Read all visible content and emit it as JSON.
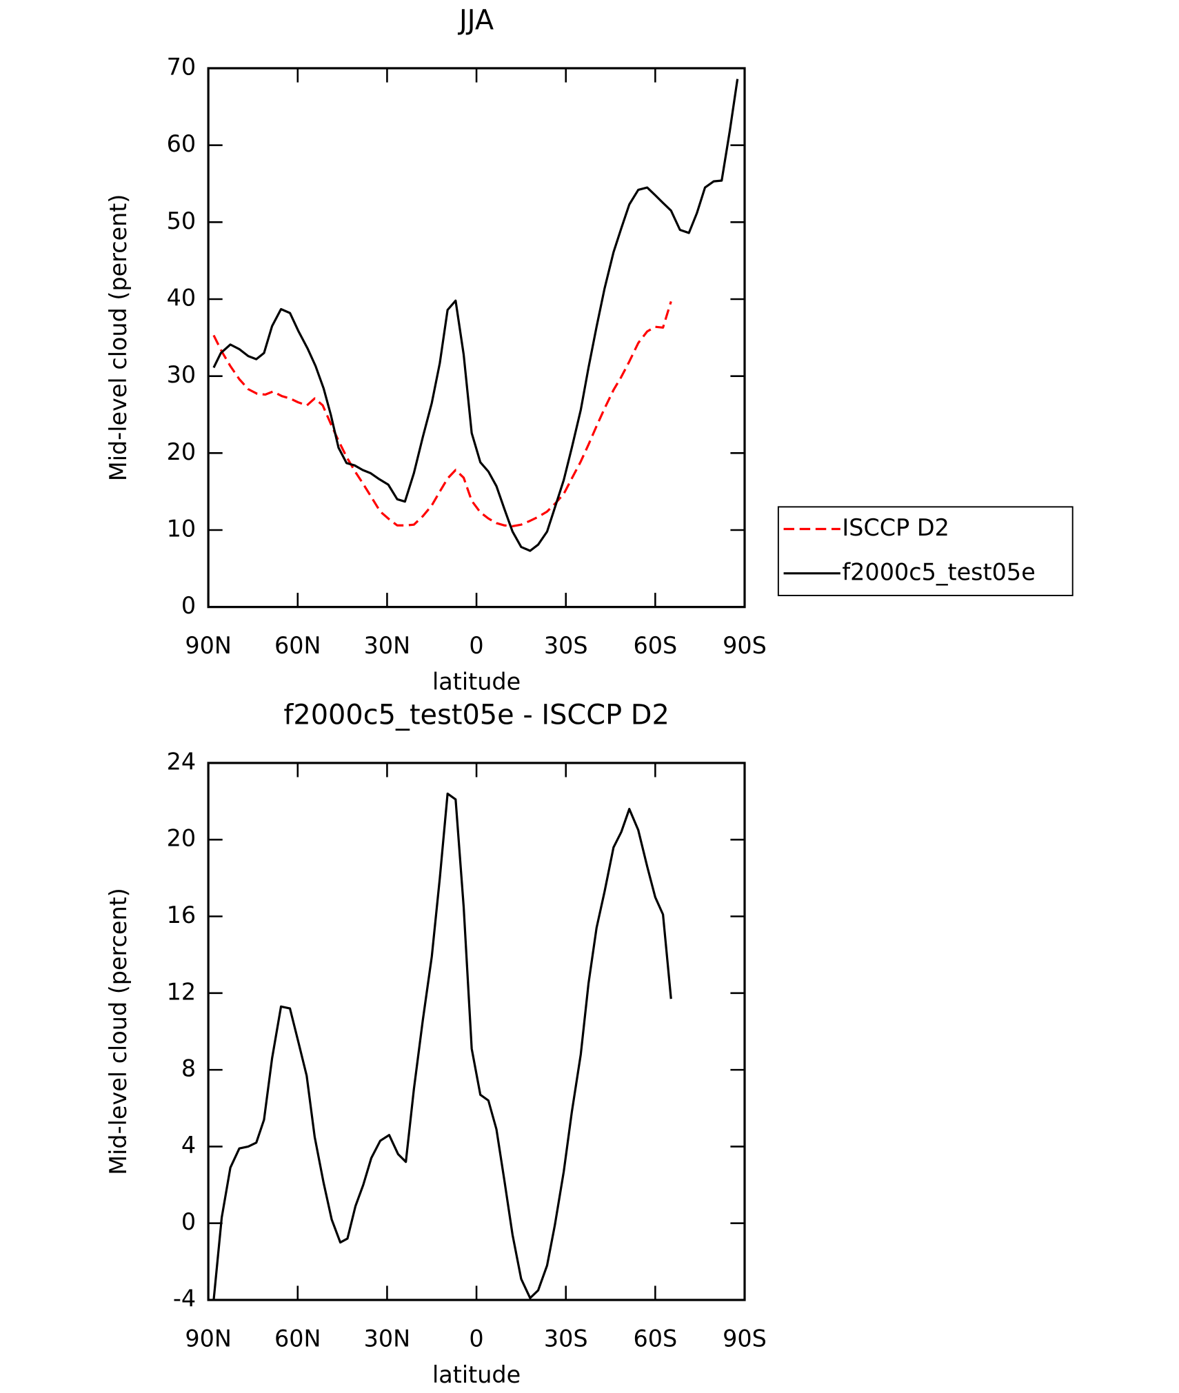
{
  "chart_data": [
    {
      "type": "line",
      "title": "JJA",
      "xlabel": "latitude",
      "ylabel": "Mid-level cloud (percent)",
      "xlim": [
        90,
        -90
      ],
      "xticks": [
        {
          "value": 90,
          "label": "90N"
        },
        {
          "value": 60,
          "label": "60N"
        },
        {
          "value": 30,
          "label": "30N"
        },
        0,
        {
          "value": -30,
          "label": "30S"
        },
        {
          "value": -60,
          "label": "60S"
        },
        {
          "value": -90,
          "label": "90S"
        }
      ],
      "ylim": [
        0,
        70
      ],
      "yticks": [
        0,
        10,
        20,
        30,
        40,
        50,
        60,
        70
      ],
      "legend": "outside-right",
      "series": [
        {
          "name": "ISCCP D2",
          "color": "#ff0000",
          "style": "dashed",
          "x": [
            88.2,
            85.5,
            82.6,
            79.6,
            76.6,
            73.6,
            70.9,
            68.3,
            65.3,
            62.6,
            59.9,
            56.9,
            54.3,
            51.6,
            48.9,
            46.3,
            43.6,
            40.9,
            38.2,
            35.3,
            32.3,
            29.3,
            26.6,
            23.7,
            21.0,
            18.0,
            15.0,
            12.3,
            9.7,
            7.0,
            4.3,
            1.6,
            -1.3,
            -4.0,
            -6.7,
            -9.4,
            -12.1,
            -15.0,
            -18.0,
            -20.7,
            -23.7,
            -26.3,
            -29.3,
            -32.0,
            -35.0,
            -37.6,
            -40.3,
            -43.0,
            -46.0,
            -48.6,
            -51.3,
            -54.3,
            -57.3,
            -60.0,
            -62.6,
            -65.3
          ],
          "values": [
            35.3,
            33.2,
            31.3,
            29.6,
            28.3,
            27.7,
            27.6,
            28.0,
            27.4,
            27.1,
            26.6,
            26.2,
            27.1,
            26.2,
            23.8,
            21.6,
            19.5,
            17.7,
            16.1,
            14.3,
            12.4,
            11.4,
            10.6,
            10.6,
            10.7,
            11.8,
            13.2,
            15.0,
            16.7,
            17.8,
            16.8,
            13.8,
            12.3,
            11.5,
            10.9,
            10.6,
            10.5,
            10.7,
            11.2,
            11.7,
            12.4,
            13.4,
            14.7,
            16.7,
            18.9,
            21.1,
            23.5,
            25.8,
            28.2,
            29.9,
            31.9,
            34.3,
            35.8,
            36.4,
            36.3,
            39.7
          ]
        },
        {
          "name": "f2000c5_test05e",
          "color": "#000000",
          "style": "solid",
          "x": [
            88.2,
            85.8,
            82.6,
            79.6,
            76.6,
            73.9,
            71.3,
            68.6,
            65.6,
            62.6,
            59.7,
            56.7,
            54.0,
            51.3,
            48.9,
            46.3,
            43.6,
            40.9,
            38.2,
            35.6,
            32.6,
            29.6,
            26.6,
            24.0,
            21.0,
            18.0,
            15.0,
            12.3,
            9.7,
            7.0,
            4.3,
            1.6,
            -1.3,
            -4.0,
            -6.7,
            -9.4,
            -12.1,
            -15.0,
            -18.0,
            -20.7,
            -23.7,
            -26.3,
            -29.3,
            -32.0,
            -35.0,
            -37.6,
            -40.3,
            -43.0,
            -46.0,
            -48.6,
            -51.3,
            -54.3,
            -57.3,
            -60.0,
            -62.6,
            -65.3,
            -68.3,
            -71.3,
            -74.0,
            -76.7,
            -79.6,
            -82.3,
            -85.0,
            -87.6
          ],
          "values": [
            31.1,
            33.0,
            34.1,
            33.5,
            32.6,
            32.2,
            33.0,
            36.5,
            38.7,
            38.2,
            35.8,
            33.6,
            31.3,
            28.4,
            25.0,
            20.7,
            18.7,
            18.4,
            17.8,
            17.4,
            16.6,
            15.9,
            14.0,
            13.7,
            17.4,
            22.1,
            26.5,
            31.7,
            38.6,
            39.8,
            32.8,
            22.6,
            18.8,
            17.6,
            15.7,
            12.7,
            9.8,
            7.8,
            7.3,
            8.1,
            9.8,
            12.9,
            16.5,
            20.7,
            25.6,
            31.1,
            36.4,
            41.4,
            46.1,
            49.2,
            52.3,
            54.2,
            54.5,
            53.5,
            52.5,
            51.5,
            49.0,
            48.6,
            51.2,
            54.5,
            55.3,
            55.4,
            61.8,
            68.6
          ]
        }
      ]
    },
    {
      "type": "line",
      "title": "f2000c5_test05e - ISCCP D2",
      "xlabel": "latitude",
      "ylabel": "Mid-level cloud (percent)",
      "xlim": [
        90,
        -90
      ],
      "xticks": [
        {
          "value": 90,
          "label": "90N"
        },
        {
          "value": 60,
          "label": "60N"
        },
        {
          "value": 30,
          "label": "30N"
        },
        0,
        {
          "value": -30,
          "label": "30S"
        },
        {
          "value": -60,
          "label": "60S"
        },
        {
          "value": -90,
          "label": "90S"
        }
      ],
      "ylim": [
        -4,
        24
      ],
      "yticks": [
        -4,
        0,
        4,
        8,
        12,
        16,
        20,
        24
      ],
      "series": [
        {
          "color": "#000000",
          "style": "solid",
          "x": [
            88.2,
            85.5,
            82.6,
            79.6,
            76.6,
            73.9,
            71.3,
            68.6,
            65.6,
            62.6,
            59.7,
            57.0,
            54.3,
            51.3,
            48.6,
            45.7,
            43.3,
            40.6,
            38.0,
            35.3,
            32.3,
            29.3,
            26.3,
            23.7,
            21.0,
            18.0,
            15.0,
            12.3,
            9.7,
            7.0,
            4.3,
            1.6,
            -1.3,
            -4.0,
            -6.7,
            -9.4,
            -12.1,
            -15.0,
            -18.0,
            -20.7,
            -23.7,
            -26.3,
            -29.3,
            -32.0,
            -35.0,
            -37.6,
            -40.3,
            -43.0,
            -46.0,
            -48.6,
            -51.3,
            -54.3,
            -57.3,
            -60.0,
            -62.6,
            -65.3
          ],
          "values": [
            -4.0,
            0.3,
            2.9,
            3.9,
            4.0,
            4.2,
            5.4,
            8.6,
            11.3,
            11.2,
            9.4,
            7.7,
            4.5,
            2.1,
            0.2,
            -1.0,
            -0.8,
            0.9,
            2.0,
            3.4,
            4.3,
            4.6,
            3.6,
            3.2,
            7.0,
            10.6,
            13.9,
            18.0,
            22.4,
            22.1,
            16.5,
            9.1,
            6.7,
            6.4,
            4.9,
            2.2,
            -0.6,
            -2.9,
            -3.9,
            -3.5,
            -2.2,
            -0.1,
            2.7,
            5.8,
            8.8,
            12.5,
            15.4,
            17.3,
            19.6,
            20.4,
            21.6,
            20.5,
            18.6,
            17.0,
            16.1,
            11.7
          ]
        }
      ]
    }
  ]
}
